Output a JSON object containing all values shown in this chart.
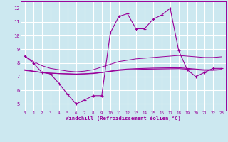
{
  "xlabel": "Windchill (Refroidissement éolien,°C)",
  "bg_color": "#cce8f0",
  "grid_color": "#ffffff",
  "line_color": "#990099",
  "x": [
    0,
    1,
    2,
    3,
    4,
    5,
    6,
    7,
    8,
    9,
    10,
    11,
    12,
    13,
    14,
    15,
    16,
    17,
    18,
    19,
    20,
    21,
    22,
    23
  ],
  "series1_markers": [
    0,
    1,
    2,
    3,
    4,
    5,
    6,
    7,
    8,
    9,
    10,
    11,
    12,
    13,
    14,
    15,
    16,
    17,
    18,
    19,
    20,
    21,
    22,
    23
  ],
  "series1": [
    8.5,
    8.0,
    7.3,
    7.2,
    6.5,
    5.7,
    5.0,
    5.3,
    5.6,
    5.6,
    10.2,
    11.4,
    11.6,
    10.5,
    10.5,
    11.2,
    11.5,
    12.0,
    8.9,
    7.5,
    7.0,
    7.3,
    7.6,
    7.6
  ],
  "series2": [
    8.5,
    8.1,
    7.8,
    7.6,
    7.5,
    7.4,
    7.35,
    7.4,
    7.5,
    7.7,
    7.9,
    8.1,
    8.2,
    8.3,
    8.35,
    8.4,
    8.45,
    8.5,
    8.55,
    8.5,
    8.45,
    8.4,
    8.4,
    8.45
  ],
  "series3": [
    7.5,
    7.4,
    7.3,
    7.25,
    7.22,
    7.2,
    7.18,
    7.2,
    7.22,
    7.3,
    7.4,
    7.5,
    7.55,
    7.58,
    7.6,
    7.62,
    7.63,
    7.64,
    7.65,
    7.6,
    7.55,
    7.5,
    7.5,
    7.52
  ],
  "series4": [
    7.45,
    7.38,
    7.3,
    7.25,
    7.22,
    7.2,
    7.18,
    7.2,
    7.25,
    7.3,
    7.38,
    7.45,
    7.5,
    7.52,
    7.54,
    7.55,
    7.56,
    7.57,
    7.58,
    7.54,
    7.5,
    7.46,
    7.46,
    7.5
  ],
  "ylim": [
    4.5,
    12.5
  ],
  "yticks": [
    5,
    6,
    7,
    8,
    9,
    10,
    11,
    12
  ],
  "xlim": [
    -0.5,
    23.5
  ]
}
